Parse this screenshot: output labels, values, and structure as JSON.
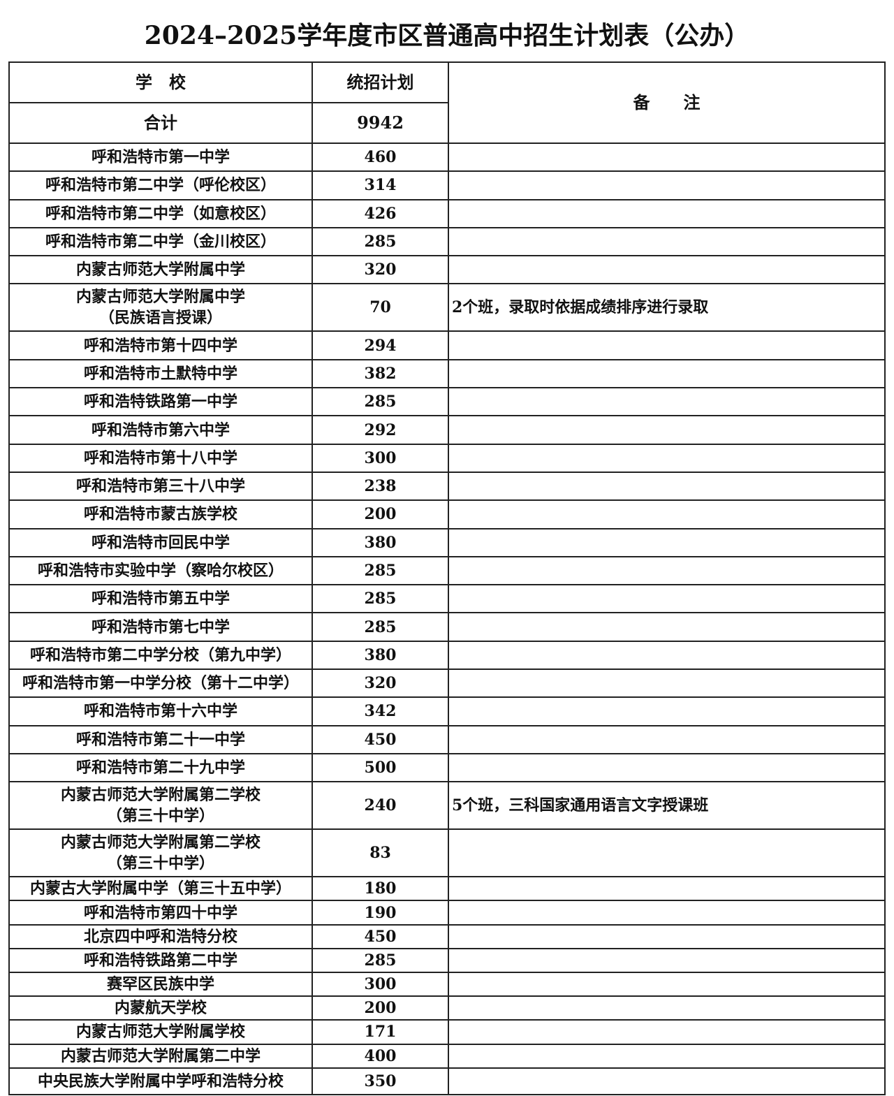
{
  "title": "2024–2025学年度市区普通高中招生计划表（公办）",
  "header": {
    "school": "学　校",
    "plan": "统招计划",
    "remarks": "备　　注"
  },
  "total": {
    "label": "合计",
    "value": "9942"
  },
  "rows": [
    {
      "school": [
        "呼和浩特市第一中学"
      ],
      "plan": "460",
      "note": ""
    },
    {
      "school": [
        "呼和浩特市第二中学（呼伦校区）"
      ],
      "plan": "314",
      "note": ""
    },
    {
      "school": [
        "呼和浩特市第二中学（如意校区）"
      ],
      "plan": "426",
      "note": ""
    },
    {
      "school": [
        "呼和浩特市第二中学（金川校区）"
      ],
      "plan": "285",
      "note": ""
    },
    {
      "school": [
        "内蒙古师范大学附属中学"
      ],
      "plan": "320",
      "note": ""
    },
    {
      "school": [
        "内蒙古师范大学附属中学",
        "（民族语言授课）"
      ],
      "plan": "70",
      "note": "2个班，录取时依据成绩排序进行录取"
    },
    {
      "school": [
        "呼和浩特市第十四中学"
      ],
      "plan": "294",
      "note": ""
    },
    {
      "school": [
        "呼和浩特市土默特中学"
      ],
      "plan": "382",
      "note": ""
    },
    {
      "school": [
        "呼和浩特铁路第一中学"
      ],
      "plan": "285",
      "note": ""
    },
    {
      "school": [
        "呼和浩特市第六中学"
      ],
      "plan": "292",
      "note": ""
    },
    {
      "school": [
        "呼和浩特市第十八中学"
      ],
      "plan": "300",
      "note": ""
    },
    {
      "school": [
        "呼和浩特市第三十八中学"
      ],
      "plan": "238",
      "note": ""
    },
    {
      "school": [
        "呼和浩特市蒙古族学校"
      ],
      "plan": "200",
      "note": ""
    },
    {
      "school": [
        "呼和浩特市回民中学"
      ],
      "plan": "380",
      "note": ""
    },
    {
      "school": [
        "呼和浩特市实验中学（察哈尔校区）"
      ],
      "plan": "285",
      "note": ""
    },
    {
      "school": [
        "呼和浩特市第五中学"
      ],
      "plan": "285",
      "note": ""
    },
    {
      "school": [
        "呼和浩特市第七中学"
      ],
      "plan": "285",
      "note": ""
    },
    {
      "school": [
        "呼和浩特市第二中学分校（第九中学）"
      ],
      "plan": "380",
      "note": ""
    },
    {
      "school": [
        "呼和浩特市第一中学分校（第十二中学）"
      ],
      "plan": "320",
      "note": ""
    },
    {
      "school": [
        "呼和浩特市第十六中学"
      ],
      "plan": "342",
      "note": ""
    },
    {
      "school": [
        "呼和浩特市第二十一中学"
      ],
      "plan": "450",
      "note": ""
    },
    {
      "school": [
        "呼和浩特市第二十九中学"
      ],
      "plan": "500",
      "note": ""
    },
    {
      "school": [
        "内蒙古师范大学附属第二学校",
        "（第三十中学）"
      ],
      "plan": "240",
      "note": "5个班，三科国家通用语言文字授课班"
    },
    {
      "school": [
        "内蒙古师范大学附属第二学校",
        "（第三十中学）"
      ],
      "plan": "83",
      "note": ""
    },
    {
      "school": [
        "内蒙古大学附属中学（第三十五中学）"
      ],
      "plan": "180",
      "note": ""
    },
    {
      "school": [
        "呼和浩特市第四十中学"
      ],
      "plan": "190",
      "note": ""
    },
    {
      "school": [
        "北京四中呼和浩特分校"
      ],
      "plan": "450",
      "note": ""
    },
    {
      "school": [
        "呼和浩特铁路第二中学"
      ],
      "plan": "285",
      "note": ""
    },
    {
      "school": [
        "赛罕区民族中学"
      ],
      "plan": "300",
      "note": ""
    },
    {
      "school": [
        "内蒙航天学校"
      ],
      "plan": "200",
      "note": ""
    },
    {
      "school": [
        "内蒙古师范大学附属学校"
      ],
      "plan": "171",
      "note": ""
    },
    {
      "school": [
        "内蒙古师范大学附属第二中学"
      ],
      "plan": "400",
      "note": ""
    },
    {
      "school": [
        "中央民族大学附属中学呼和浩特分校"
      ],
      "plan": "350",
      "note": ""
    }
  ]
}
